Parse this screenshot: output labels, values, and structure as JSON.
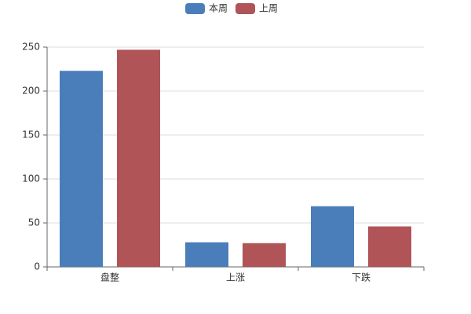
{
  "chart_data": {
    "type": "bar",
    "categories": [
      "盘整",
      "上涨",
      "下跌"
    ],
    "series": [
      {
        "name": "本周",
        "color": "#4a7ebb",
        "values": [
          223,
          28,
          69
        ]
      },
      {
        "name": "上周",
        "color": "#b05458",
        "values": [
          247,
          27,
          46
        ]
      }
    ],
    "ylim": [
      0,
      250
    ],
    "yticks": [
      0,
      50,
      100,
      150,
      200,
      250
    ],
    "grid": true,
    "legend": "top"
  }
}
